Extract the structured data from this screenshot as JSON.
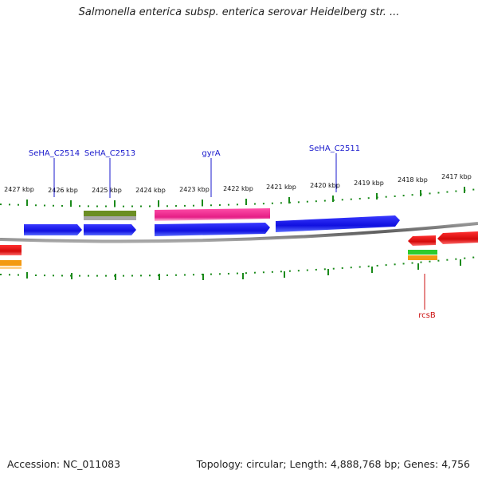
{
  "title": "Salmonella enterica subsp. enterica serovar Heidelberg str. ...",
  "footer": {
    "accession_label": "Accession:",
    "accession": "NC_011083",
    "topology_label": "Topology:",
    "topology": "circular",
    "length_label": "Length:",
    "length": "4,888,768 bp",
    "genes_label": "Genes:",
    "genes": "4,756"
  },
  "axis_ticks": [
    "2427 kbp",
    "2426 kbp",
    "2425 kbp",
    "2424 kbp",
    "2423 kbp",
    "2422 kbp",
    "2421 kbp",
    "2420 kbp",
    "2419 kbp",
    "2418 kbp",
    "2417 kbp"
  ],
  "gene_labels": [
    {
      "text": "SeHA_C2514",
      "strand": "forward"
    },
    {
      "text": "SeHA_C2513",
      "strand": "forward"
    },
    {
      "text": "gyrA",
      "strand": "forward"
    },
    {
      "text": "SeHA_C2511",
      "strand": "forward"
    },
    {
      "text": "rcsB",
      "strand": "reverse"
    }
  ],
  "colors": {
    "forward_label": "#1a1acc",
    "reverse_label": "#cc1111",
    "cds_forward": "#1414e6",
    "cds_reverse": "#e01010",
    "pink_feature": "#e8208a",
    "olive_feature": "#6b8e23",
    "green_feature": "#2ecc2e",
    "orange_feature": "#f39a12",
    "gray_feature": "#a0a0a0",
    "tick": "#1a8a1a",
    "backbone": "#7a7a7a"
  }
}
